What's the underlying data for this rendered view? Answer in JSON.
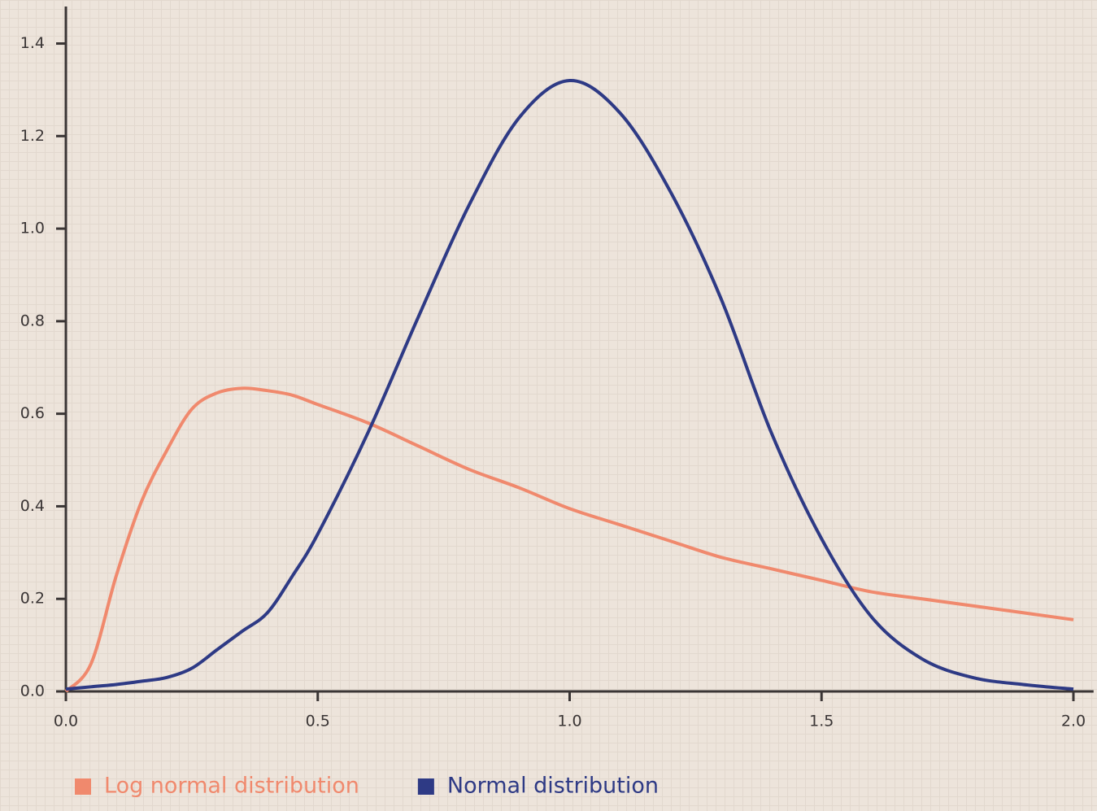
{
  "chart_data": {
    "type": "line",
    "x": [
      0,
      0.05,
      0.1,
      0.15,
      0.2,
      0.25,
      0.3,
      0.35,
      0.4,
      0.45,
      0.5,
      0.6,
      0.7,
      0.8,
      0.9,
      1.0,
      1.1,
      1.2,
      1.3,
      1.4,
      1.5,
      1.6,
      1.7,
      1.8,
      1.9,
      2.0
    ],
    "series": [
      {
        "name": "Log normal distribution",
        "color": "#f0896d",
        "values": [
          0,
          0.06,
          0.25,
          0.41,
          0.52,
          0.61,
          0.645,
          0.655,
          0.65,
          0.64,
          0.62,
          0.58,
          0.53,
          0.48,
          0.44,
          0.395,
          0.36,
          0.325,
          0.29,
          0.265,
          0.24,
          0.215,
          0.2,
          0.185,
          0.17,
          0.155
        ]
      },
      {
        "name": "Normal distribution",
        "color": "#2e3a85",
        "values": [
          0.005,
          0.01,
          0.015,
          0.022,
          0.03,
          0.05,
          0.09,
          0.13,
          0.17,
          0.25,
          0.34,
          0.56,
          0.81,
          1.05,
          1.24,
          1.32,
          1.25,
          1.08,
          0.85,
          0.56,
          0.33,
          0.16,
          0.07,
          0.03,
          0.015,
          0.005
        ]
      }
    ],
    "xlim": [
      0,
      2.04
    ],
    "ylim": [
      0,
      1.48
    ],
    "xticks": [
      {
        "value": 0,
        "label": "0.0"
      },
      0.5,
      {
        "value": 1,
        "label": "1.0"
      },
      1.5,
      {
        "value": 2,
        "label": "2.0"
      }
    ],
    "yticks": [
      {
        "value": 0,
        "label": "0.0"
      },
      0.2,
      0.4,
      0.6,
      0.8,
      {
        "value": 1,
        "label": "1.0"
      },
      1.2,
      1.4
    ],
    "legend": "bottom-left"
  }
}
